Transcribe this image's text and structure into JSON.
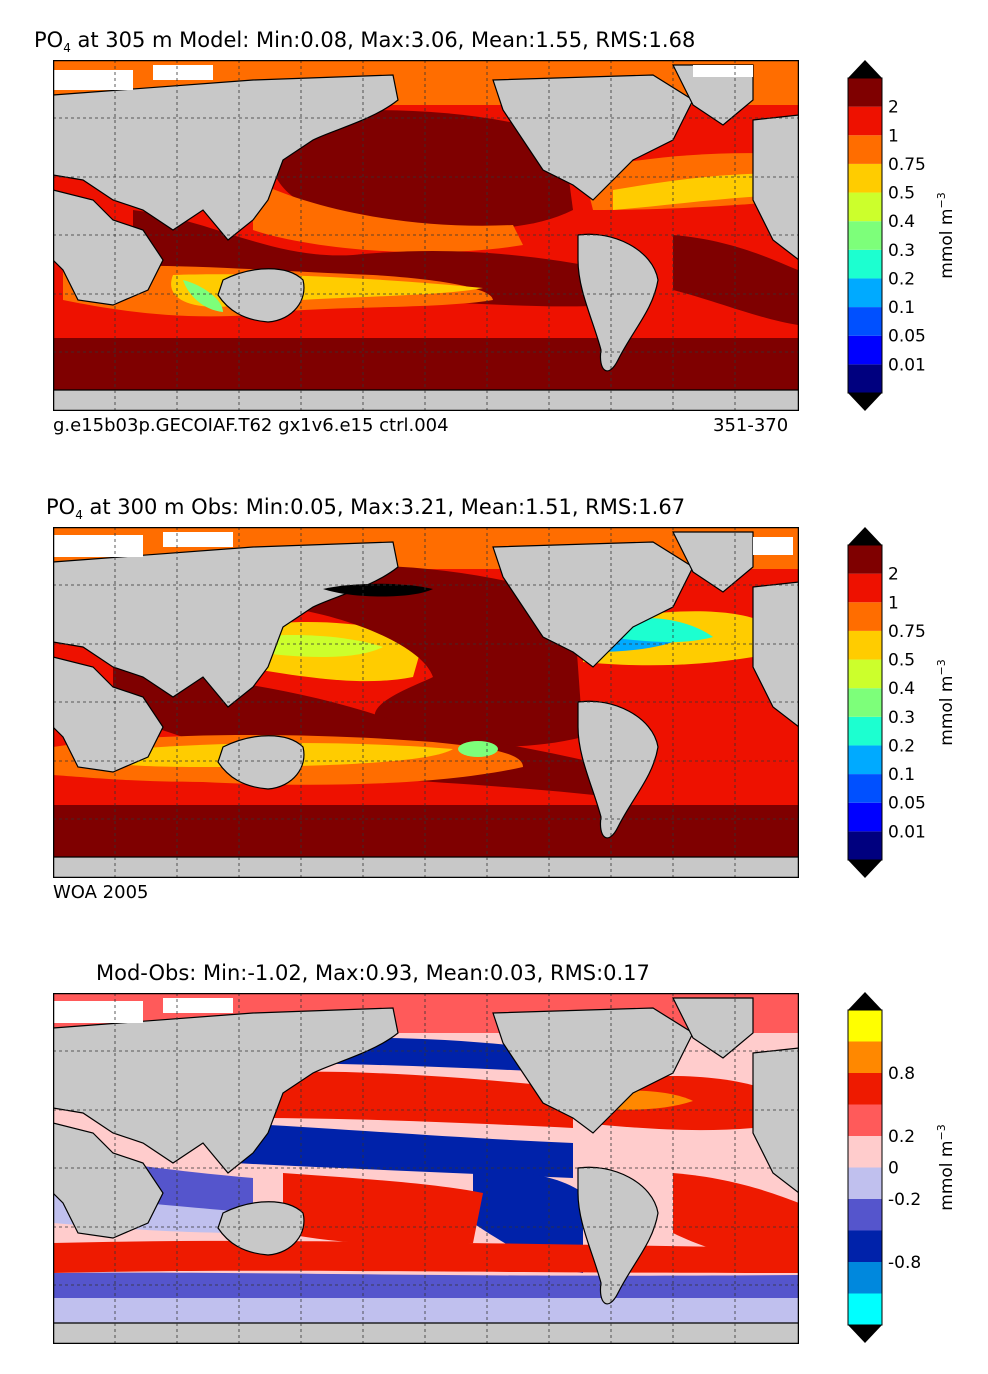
{
  "panels": [
    {
      "title_prefix": "PO",
      "title_subscript": "4",
      "title_suffix": " at 305 m Model: Min:0.08, Max:3.06, Mean:1.55, RMS:1.68",
      "caption_left": "g.e15b03p.GECOIAF.T62 gx1v6.e15 ctrl.004",
      "caption_right": "351-370",
      "colorbar_label": "mmol m",
      "colorbar_label_exp": "−3",
      "colorbar_ticks": [
        "2",
        "1",
        "0.75",
        "0.5",
        "0.4",
        "0.3",
        "0.2",
        "0.1",
        "0.05",
        "0.01"
      ]
    },
    {
      "title_prefix": "PO",
      "title_subscript": "4",
      "title_suffix": " at 300 m Obs: Min:0.05, Max:3.21, Mean:1.51, RMS:1.67",
      "caption_left": "WOA 2005",
      "caption_right": "",
      "colorbar_label": "mmol m",
      "colorbar_label_exp": "−3",
      "colorbar_ticks": [
        "2",
        "1",
        "0.75",
        "0.5",
        "0.4",
        "0.3",
        "0.2",
        "0.1",
        "0.05",
        "0.01"
      ]
    },
    {
      "title_prefix": "",
      "title_subscript": "",
      "title_suffix": "Mod-Obs: Min:-1.02, Max:0.93, Mean:0.03, RMS:0.17",
      "caption_left": "",
      "caption_right": "",
      "colorbar_label": "mmol m",
      "colorbar_label_exp": "−3",
      "colorbar_ticks": [
        "0.8",
        "0.2",
        "0",
        "-0.2",
        "-0.8"
      ]
    }
  ],
  "colors": {
    "land": "#c8c8c8",
    "ice": "#ffffff",
    "po4_scale": [
      "#00007f",
      "#0000ff",
      "#0050ff",
      "#00aaff",
      "#1cffd0",
      "#7dff7a",
      "#ccff2c",
      "#ffcc00",
      "#ff6d00",
      "#ee1100",
      "#7f0000"
    ],
    "diff_scale": [
      "#00ffff",
      "#0088dd",
      "#0022aa",
      "#5555cc",
      "#c0c0ee",
      "#ffcccc",
      "#ff5a5a",
      "#ee1a00",
      "#ff8800",
      "#ffff00"
    ],
    "frame": "#000000"
  }
}
